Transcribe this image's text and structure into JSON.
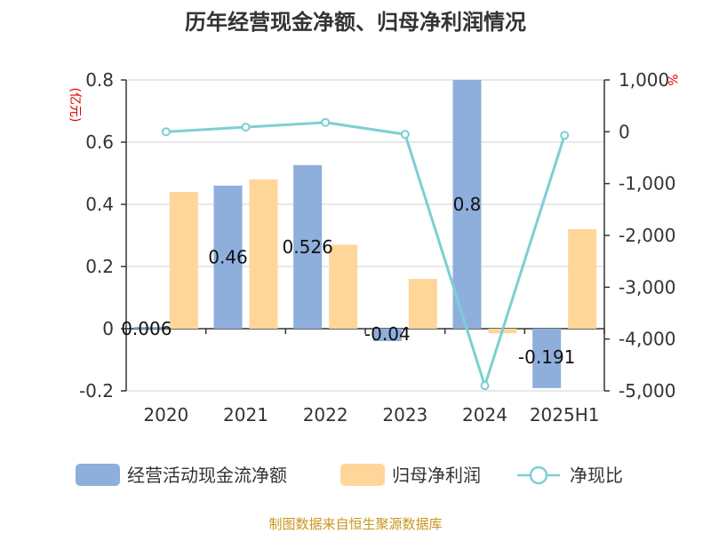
{
  "title": "历年经营现金净额、归母净利润情况",
  "source": "制图数据来自恒生聚源数据库",
  "chart_data": {
    "type": "bar",
    "categories": [
      "2020",
      "2021",
      "2022",
      "2023",
      "2024",
      "2025H1"
    ],
    "left_axis": {
      "unit": "(亿元)",
      "ticks": [
        "0.8",
        "0.6",
        "0.4",
        "0.2",
        "0",
        "-0.2"
      ],
      "ylim": [
        -0.2,
        0.8
      ]
    },
    "right_axis": {
      "unit": "%",
      "ticks": [
        "1,000",
        "0",
        "-1,000",
        "-2,000",
        "-3,000",
        "-4,000",
        "-5,000"
      ],
      "ylim": [
        -5000,
        1000
      ]
    },
    "series": [
      {
        "name": "经营活动现金流净额",
        "type": "bar",
        "axis": "left",
        "color": "#8eaedc",
        "values": [
          0.006,
          0.46,
          0.526,
          -0.04,
          0.8,
          -0.191
        ],
        "labels": [
          "0.006",
          "0.46",
          "0.526",
          "-0.04",
          "0.8",
          "-0.191"
        ]
      },
      {
        "name": "归母净利润",
        "type": "bar",
        "axis": "left",
        "color": "#ffd699",
        "values": [
          0.44,
          0.48,
          0.27,
          0.16,
          -0.015,
          0.32
        ]
      },
      {
        "name": "净现比",
        "type": "line",
        "axis": "right",
        "color": "#7dcfd2",
        "values": [
          0,
          90,
          180,
          -50,
          -4900,
          -70
        ]
      }
    ],
    "legend_position": "bottom",
    "grid": true
  }
}
